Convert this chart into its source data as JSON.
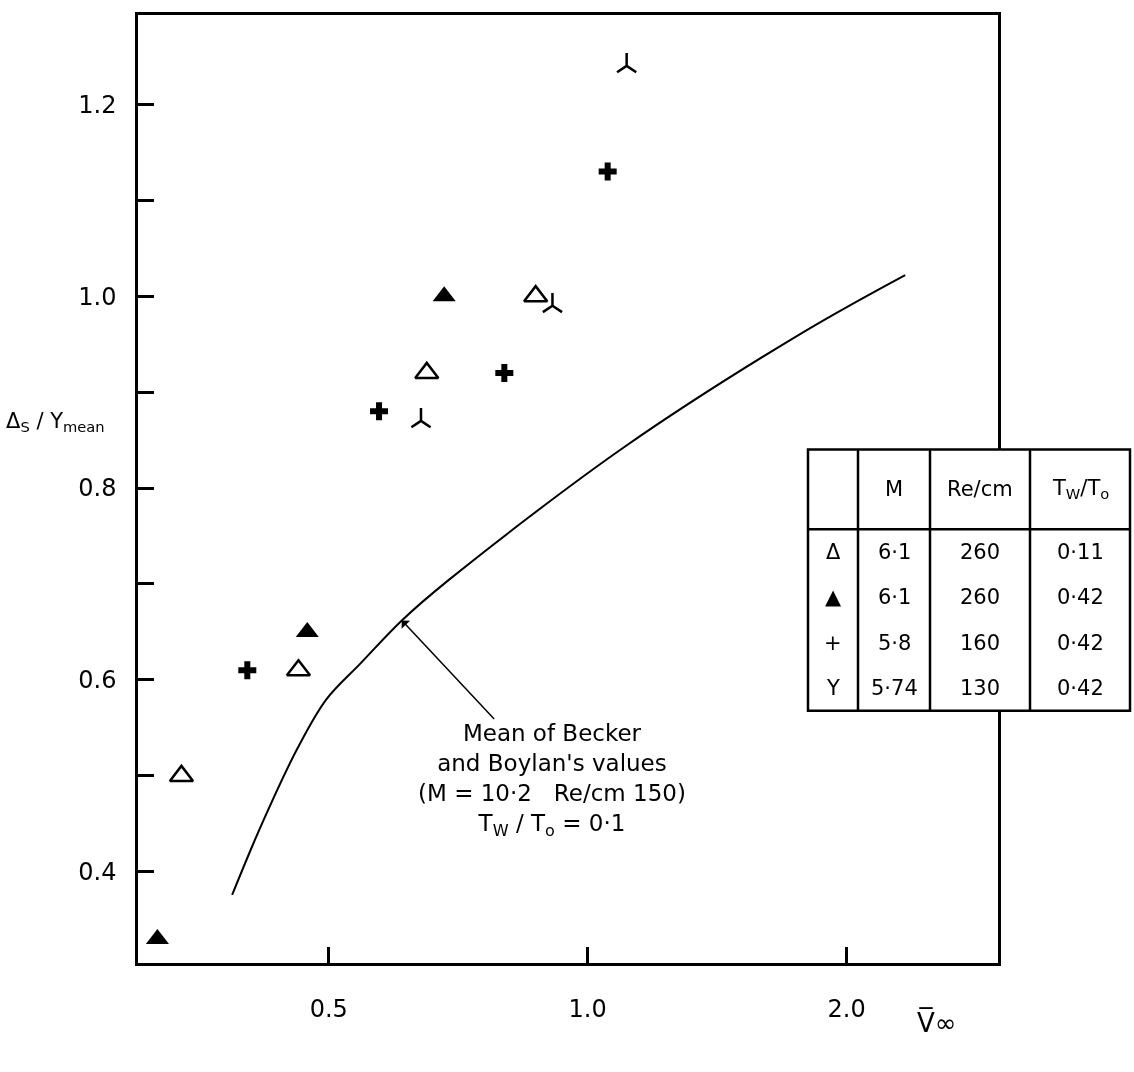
{
  "chart_data": {
    "type": "scatter",
    "xlabel": "V̅∞",
    "ylabel": "Δ$_{S}$ / Y$_{mean}$",
    "log": "x",
    "xlim": [
      0.3,
      3.0
    ],
    "xticks": [
      0.5,
      {
        "value": 1.0,
        "label": "1.0"
      },
      {
        "value": 2.0,
        "label": "2.0"
      }
    ],
    "ylim": [
      0.305,
      1.293
    ],
    "yticks": [
      0.4,
      {
        "value": 0.5,
        "label": null
      },
      0.6,
      {
        "value": 0.7,
        "label": null
      },
      0.8,
      {
        "value": 0.9,
        "label": null
      },
      {
        "value": 1.0,
        "label": "1.0"
      },
      {
        "value": 1.1,
        "label": null
      },
      1.2
    ],
    "series": [
      {
        "marker": "triangle-open",
        "color": "#000000",
        "x": [
          0.337,
          0.461,
          0.65,
          0.87
        ],
        "values": [
          0.5,
          0.61,
          0.92,
          1.0
        ]
      },
      {
        "marker": "triangle",
        "color": "#000000",
        "x": [
          0.316,
          0.472,
          0.681
        ],
        "values": [
          0.33,
          0.65,
          1.0
        ]
      },
      {
        "marker": "cross",
        "color": "#000000",
        "x": [
          0.402,
          0.572,
          0.8,
          1.055
        ],
        "values": [
          0.61,
          0.88,
          0.92,
          1.13
        ]
      },
      {
        "color": "#000000",
        "x": [
          0.64,
          0.91,
          1.11
        ],
        "values": [
          0.87,
          0.99,
          1.24
        ]
      },
      {
        "type": "line",
        "marker": "none",
        "line_style": "solid",
        "color": "#000000",
        "x": [
          0.386,
          0.418,
          0.46,
          0.497,
          0.544,
          0.608,
          0.689,
          1.1,
          1.77,
          2.34
        ],
        "values": [
          0.376,
          0.45,
          0.529,
          0.58,
          0.617,
          0.662,
          0.704,
          0.842,
          0.961,
          1.022
        ]
      }
    ],
    "annotations": [
      {
        "text": "Mean of Becker\nand Boylan's values\n(M = 10·2   Re/cm 150)\nT$_{W}$ / T$_{o}$ = 0·1",
        "x": 0.608,
        "y": 0.662
      },
      "M",
      "Re/cm",
      "T$_{W}$/T$_{o}$",
      "Δ",
      "6·1",
      "260",
      "0·11",
      "▲",
      "6·1",
      "260",
      "0·42",
      "+",
      "5·8",
      "160",
      "0·42",
      "Y",
      "5·74",
      "130",
      "0·42"
    ]
  }
}
